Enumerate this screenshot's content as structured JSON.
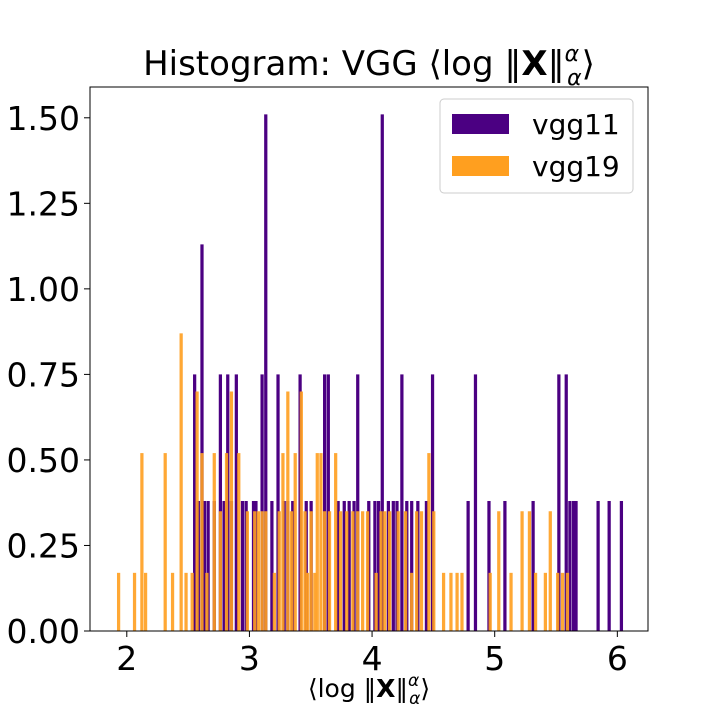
{
  "chart_data": {
    "type": "bar",
    "title": "Histogram: VGG ⟨log ‖X‖_α^α⟩",
    "xlabel": "⟨log ‖X‖_α^α⟩",
    "ylabel": "",
    "xlim": [
      1.7,
      6.25
    ],
    "ylim": [
      0.0,
      1.59
    ],
    "xticks": [
      2,
      3,
      4,
      5,
      6
    ],
    "yticks": [
      0.0,
      0.25,
      0.5,
      0.75,
      1.0,
      1.25,
      1.5
    ],
    "ytick_labels": [
      "0.00",
      "0.25",
      "0.50",
      "0.75",
      "1.00",
      "1.25",
      "1.50"
    ],
    "legend_position": "upper right",
    "series": [
      {
        "name": "vgg11",
        "color": "#4b0082",
        "bin_width": 0.0264,
        "bins": [
          [
            2.54,
            0.75
          ],
          [
            2.57,
            0.38
          ],
          [
            2.6,
            1.13
          ],
          [
            2.62,
            0.38
          ],
          [
            2.65,
            0.38
          ],
          [
            2.7,
            0.38
          ],
          [
            2.75,
            0.75
          ],
          [
            2.78,
            0.38
          ],
          [
            2.81,
            0.75
          ],
          [
            2.84,
            0.38
          ],
          [
            2.88,
            0.75
          ],
          [
            2.93,
            0.38
          ],
          [
            2.96,
            0.38
          ],
          [
            3.02,
            0.38
          ],
          [
            3.04,
            0.38
          ],
          [
            3.09,
            0.75
          ],
          [
            3.12,
            1.51
          ],
          [
            3.17,
            0.38
          ],
          [
            3.22,
            0.75
          ],
          [
            3.27,
            0.38
          ],
          [
            3.3,
            0.38
          ],
          [
            3.34,
            0.38
          ],
          [
            3.4,
            0.75
          ],
          [
            3.45,
            0.38
          ],
          [
            3.49,
            0.38
          ],
          [
            3.6,
            0.75
          ],
          [
            3.63,
            0.75
          ],
          [
            3.71,
            0.38
          ],
          [
            3.76,
            0.38
          ],
          [
            3.8,
            0.38
          ],
          [
            3.84,
            0.38
          ],
          [
            3.87,
            0.75
          ],
          [
            3.96,
            0.38
          ],
          [
            4.01,
            0.38
          ],
          [
            4.04,
            0.38
          ],
          [
            4.07,
            1.51
          ],
          [
            4.12,
            0.38
          ],
          [
            4.16,
            0.38
          ],
          [
            4.19,
            0.38
          ],
          [
            4.23,
            0.75
          ],
          [
            4.27,
            0.38
          ],
          [
            4.31,
            0.38
          ],
          [
            4.36,
            0.38
          ],
          [
            4.43,
            0.38
          ],
          [
            4.48,
            0.75
          ],
          [
            4.77,
            0.38
          ],
          [
            4.83,
            0.75
          ],
          [
            4.94,
            0.38
          ],
          [
            5.07,
            0.38
          ],
          [
            5.3,
            0.38
          ],
          [
            5.51,
            0.75
          ],
          [
            5.57,
            0.75
          ],
          [
            5.6,
            0.38
          ],
          [
            5.63,
            0.38
          ],
          [
            5.65,
            0.38
          ],
          [
            5.83,
            0.38
          ],
          [
            5.92,
            0.38
          ],
          [
            6.02,
            0.38
          ]
        ]
      },
      {
        "name": "vgg19",
        "color": "#ff9f1f",
        "bin_width": 0.0264,
        "bins": [
          [
            1.92,
            0.17
          ],
          [
            2.05,
            0.17
          ],
          [
            2.11,
            0.52
          ],
          [
            2.14,
            0.17
          ],
          [
            2.3,
            0.52
          ],
          [
            2.36,
            0.17
          ],
          [
            2.43,
            0.87
          ],
          [
            2.47,
            0.17
          ],
          [
            2.52,
            0.17
          ],
          [
            2.56,
            0.7
          ],
          [
            2.6,
            0.52
          ],
          [
            2.64,
            0.17
          ],
          [
            2.7,
            0.52
          ],
          [
            2.75,
            0.35
          ],
          [
            2.8,
            0.52
          ],
          [
            2.84,
            0.7
          ],
          [
            2.9,
            0.52
          ],
          [
            2.97,
            0.35
          ],
          [
            3.03,
            0.35
          ],
          [
            3.06,
            0.35
          ],
          [
            3.09,
            0.35
          ],
          [
            3.12,
            0.35
          ],
          [
            3.19,
            0.17
          ],
          [
            3.23,
            0.35
          ],
          [
            3.26,
            0.52
          ],
          [
            3.3,
            0.7
          ],
          [
            3.33,
            0.35
          ],
          [
            3.36,
            0.52
          ],
          [
            3.41,
            0.7
          ],
          [
            3.44,
            0.35
          ],
          [
            3.46,
            0.17
          ],
          [
            3.49,
            0.35
          ],
          [
            3.52,
            0.17
          ],
          [
            3.54,
            0.52
          ],
          [
            3.57,
            0.52
          ],
          [
            3.6,
            0.35
          ],
          [
            3.64,
            0.35
          ],
          [
            3.69,
            0.52
          ],
          [
            3.73,
            0.35
          ],
          [
            3.78,
            0.35
          ],
          [
            3.83,
            0.35
          ],
          [
            3.87,
            0.35
          ],
          [
            3.91,
            0.35
          ],
          [
            3.95,
            0.35
          ],
          [
            4.02,
            0.17
          ],
          [
            4.06,
            0.35
          ],
          [
            4.09,
            0.35
          ],
          [
            4.13,
            0.35
          ],
          [
            4.2,
            0.35
          ],
          [
            4.26,
            0.35
          ],
          [
            4.31,
            0.17
          ],
          [
            4.35,
            0.35
          ],
          [
            4.39,
            0.35
          ],
          [
            4.45,
            0.52
          ],
          [
            4.49,
            0.35
          ],
          [
            4.57,
            0.17
          ],
          [
            4.63,
            0.17
          ],
          [
            4.68,
            0.17
          ],
          [
            4.72,
            0.17
          ],
          [
            4.95,
            0.17
          ],
          [
            5.02,
            0.35
          ],
          [
            5.12,
            0.17
          ],
          [
            5.21,
            0.35
          ],
          [
            5.27,
            0.35
          ],
          [
            5.32,
            0.17
          ],
          [
            5.4,
            0.17
          ],
          [
            5.44,
            0.35
          ],
          [
            5.5,
            0.17
          ],
          [
            5.54,
            0.17
          ],
          [
            5.58,
            0.17
          ]
        ]
      }
    ]
  }
}
